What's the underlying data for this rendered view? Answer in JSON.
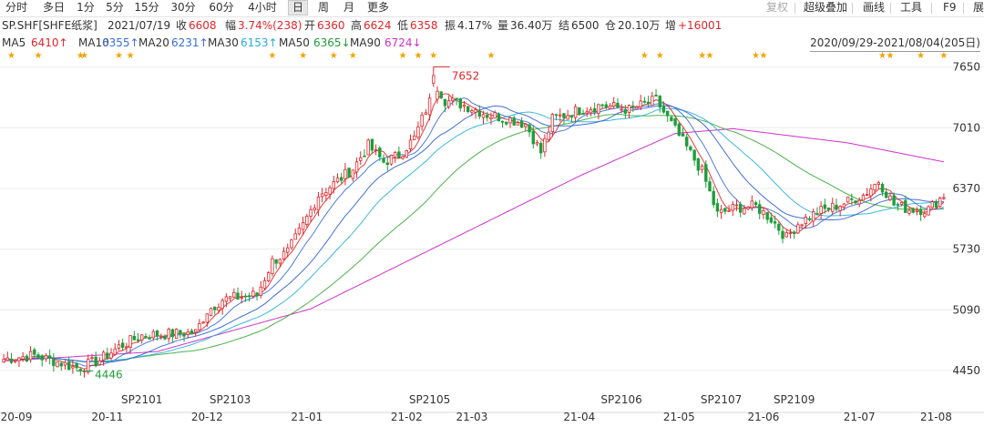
{
  "toolbar": {
    "periods": [
      "分时",
      "多日",
      "1分",
      "5分",
      "15分",
      "30分",
      "60分",
      "4小时",
      "日",
      "周",
      "月",
      "更多"
    ],
    "active_period": "日",
    "tools": [
      "复权",
      "超级叠加",
      "画线",
      "工具",
      "F9",
      "展"
    ]
  },
  "quote": {
    "symbol": "SP.SHF[SHFE纸浆]",
    "date": "2021/07/19",
    "close_label": "收",
    "close": "6608",
    "change_label": "幅",
    "change": "3.74%(238)",
    "open_label": "开",
    "open": "6360",
    "high_label": "高",
    "high": "6624",
    "low_label": "低",
    "low": "6358",
    "amplitude_label": "振",
    "amplitude": "4.17%",
    "volume_label": "量",
    "volume": "36.40万",
    "settle_label": "结",
    "settle": "6500",
    "oi_label": "仓",
    "oi": "20.10万",
    "oi_change_label": "增",
    "oi_change": "+16001"
  },
  "ma_legend": [
    {
      "label": "MA5",
      "value": "6410↑",
      "color": "#e0262b"
    },
    {
      "label": "MA10",
      "value": "6355↑",
      "color": "#3a6ed8"
    },
    {
      "label": "MA20",
      "value": "6231↑",
      "color": "#3a6ed8"
    },
    {
      "label": "MA30",
      "value": "6153↑",
      "color": "#27b0d8"
    },
    {
      "label": "MA50",
      "value": "6365↓",
      "color": "#1e9e3a"
    },
    {
      "label": "MA90",
      "value": "6724↓",
      "color": "#cc33cc"
    }
  ],
  "date_range": "2020/09/29-2021/08/04(205日)",
  "colors": {
    "up": "#e0262b",
    "down": "#1e9e3a",
    "ma5": "#e0262b",
    "ma10": "#3a6ed8",
    "ma20": "#2f5fd0",
    "ma30": "#27b0d8",
    "ma50": "#3aaa3a",
    "ma90": "#cc33cc",
    "star": "#f0a400",
    "grid": "#ececec"
  },
  "chart_data": {
    "type": "candlestick",
    "ylim": [
      4200,
      7800
    ],
    "y_ticks": [
      4450,
      5090,
      5730,
      6370,
      7010,
      7650
    ],
    "x_labels": [
      "20-09",
      "20-11",
      "20-12",
      "21-01",
      "21-02",
      "21-03",
      "21-04",
      "21-05",
      "21-06",
      "21-07",
      "21-08"
    ],
    "x_label_index": [
      0,
      27,
      53,
      79,
      105,
      122,
      150,
      176,
      198,
      223,
      243
    ],
    "contract_labels": [
      "SP2101",
      "SP2103",
      "SP2105",
      "SP2106",
      "SP2107",
      "SP2109"
    ],
    "contract_label_index": [
      36,
      59,
      111,
      161,
      187,
      206
    ],
    "annotations": [
      {
        "text": "7652",
        "index": 112,
        "value": 7652,
        "kind": "high"
      },
      {
        "text": "4446",
        "index": 19,
        "value": 4446,
        "kind": "low"
      }
    ],
    "star_index": [
      2,
      9,
      20,
      21,
      30,
      33,
      70,
      78,
      86,
      91,
      104,
      108,
      112,
      127,
      167,
      171,
      182,
      184,
      196,
      198,
      229,
      231,
      239,
      245
    ],
    "candle_count": 246,
    "close_anchors": [
      [
        0,
        4570
      ],
      [
        8,
        4610
      ],
      [
        15,
        4530
      ],
      [
        19,
        4470
      ],
      [
        25,
        4560
      ],
      [
        30,
        4700
      ],
      [
        36,
        4820
      ],
      [
        45,
        4840
      ],
      [
        50,
        4850
      ],
      [
        53,
        5080
      ],
      [
        57,
        5200
      ],
      [
        62,
        5230
      ],
      [
        66,
        5250
      ],
      [
        70,
        5600
      ],
      [
        74,
        5700
      ],
      [
        78,
        5980
      ],
      [
        82,
        6300
      ],
      [
        87,
        6450
      ],
      [
        91,
        6580
      ],
      [
        95,
        6820
      ],
      [
        99,
        6650
      ],
      [
        103,
        6720
      ],
      [
        107,
        6900
      ],
      [
        110,
        7200
      ],
      [
        113,
        7450
      ],
      [
        115,
        7300
      ],
      [
        120,
        7250
      ],
      [
        126,
        7150
      ],
      [
        132,
        7100
      ],
      [
        136,
        7050
      ],
      [
        140,
        6750
      ],
      [
        143,
        7100
      ],
      [
        150,
        7200
      ],
      [
        156,
        7250
      ],
      [
        163,
        7200
      ],
      [
        170,
        7300
      ],
      [
        174,
        7050
      ],
      [
        178,
        6800
      ],
      [
        182,
        6550
      ],
      [
        186,
        6100
      ],
      [
        191,
        6170
      ],
      [
        196,
        6180
      ],
      [
        200,
        6050
      ],
      [
        204,
        5850
      ],
      [
        207,
        6000
      ],
      [
        212,
        6120
      ],
      [
        218,
        6200
      ],
      [
        224,
        6300
      ],
      [
        228,
        6450
      ],
      [
        232,
        6200
      ],
      [
        236,
        6150
      ],
      [
        241,
        6150
      ],
      [
        245,
        6300
      ]
    ],
    "ma90_anchors": [
      [
        0,
        4550
      ],
      [
        40,
        4650
      ],
      [
        80,
        5100
      ],
      [
        120,
        5900
      ],
      [
        150,
        6500
      ],
      [
        175,
        6950
      ],
      [
        190,
        7000
      ],
      [
        220,
        6850
      ],
      [
        245,
        6650
      ]
    ]
  }
}
